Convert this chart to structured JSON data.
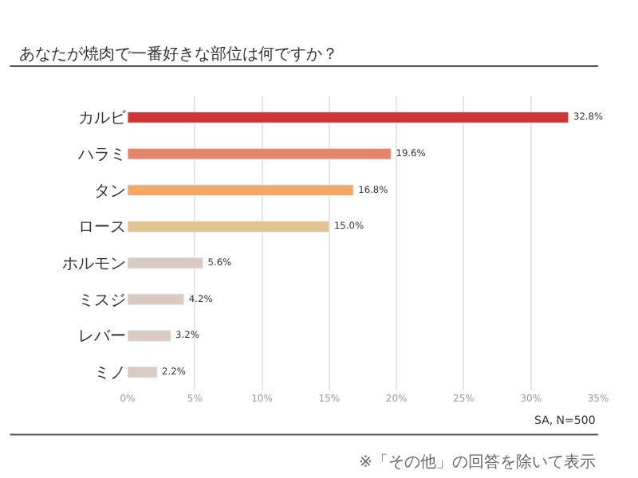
{
  "chart_data": {
    "type": "bar",
    "orientation": "horizontal",
    "title": "あなたが焼肉で一番好きな部位は何ですか？",
    "categories": [
      "カルビ",
      "ハラミ",
      "タン",
      "ロース",
      "ホルモン",
      "ミスジ",
      "レバー",
      "ミノ"
    ],
    "values": [
      32.8,
      19.6,
      16.8,
      15.0,
      5.6,
      4.2,
      3.2,
      2.2
    ],
    "value_labels": [
      "32.8%",
      "19.6%",
      "16.8%",
      "15.0%",
      "5.6%",
      "4.2%",
      "3.2%",
      "2.2%"
    ],
    "colors": [
      "#d03535",
      "#e8846a",
      "#f5a865",
      "#e3c490",
      "#d9cbc2",
      "#d9cbc2",
      "#d9cbc2",
      "#d9cbc2"
    ],
    "xlim": [
      0,
      35
    ],
    "xticks": [
      {
        "value": 0,
        "label": "0%"
      },
      {
        "value": 5,
        "label": "5%"
      },
      {
        "value": 10,
        "label": "10%"
      },
      {
        "value": 15,
        "label": "15%"
      },
      {
        "value": 20,
        "label": "20%"
      },
      {
        "value": 25,
        "label": "25%"
      },
      {
        "value": 30,
        "label": "30%"
      },
      {
        "value": 35,
        "label": "35%"
      }
    ],
    "grid": "x",
    "annotations": [
      "SA, N=500",
      "※「その他」の回答を除いて表示"
    ]
  }
}
